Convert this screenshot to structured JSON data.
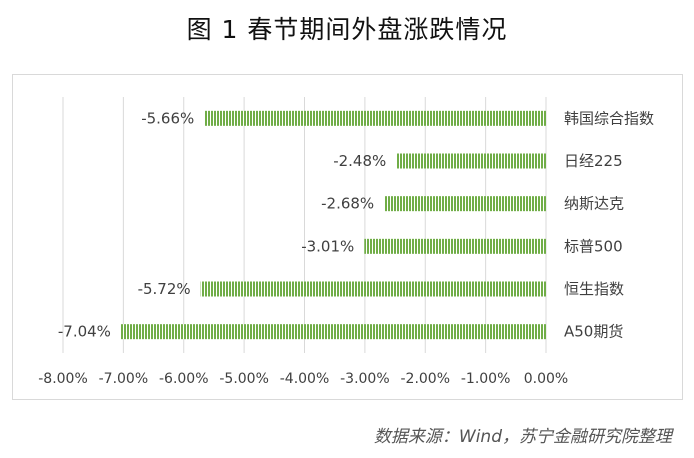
{
  "figure_title": "图 1  春节期间外盘涨跌情况",
  "source_note": "数据来源：Wind，苏宁金融研究院整理",
  "colors": {
    "bar": "#70ad47",
    "grid": "#d9d9d9",
    "text": "#404040"
  },
  "chart_data": {
    "type": "bar",
    "orientation": "horizontal",
    "title": "",
    "xlabel": "",
    "ylabel": "",
    "categories": [
      "韩国综合指数",
      "日经225",
      "纳斯达克",
      "标普500",
      "恒生指数",
      "A50期货"
    ],
    "values": [
      -5.66,
      -2.48,
      -2.68,
      -3.01,
      -5.72,
      -7.04
    ],
    "data_labels": [
      "-5.66%",
      "-2.48%",
      "-2.68%",
      "-3.01%",
      "-5.72%",
      "-7.04%"
    ],
    "xlim": [
      -8.0,
      0.0
    ],
    "ticks": [
      -8,
      -7,
      -6,
      -5,
      -4,
      -3,
      -2,
      -1,
      0
    ],
    "tick_labels": [
      "-8.00%",
      "-7.00%",
      "-6.00%",
      "-5.00%",
      "-4.00%",
      "-3.00%",
      "-2.00%",
      "-1.00%",
      "0.00%"
    ],
    "grid": "vertical",
    "legend": "none",
    "bar_pattern": "vertical-stripes"
  }
}
